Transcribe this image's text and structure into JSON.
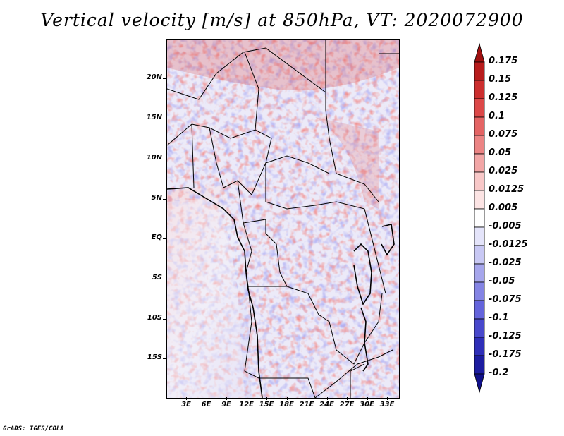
{
  "title": "Vertical velocity [m/s] at 850hPa, VT: 2020072900",
  "credit": "GrADS: IGES/COLA",
  "map": {
    "variable": "Vertical velocity",
    "units": "m/s",
    "level": "850hPa",
    "valid_time": "2020072900",
    "lat_labels": [
      "20N",
      "15N",
      "10N",
      "5N",
      "EQ",
      "5S",
      "10S",
      "15S"
    ],
    "lon_labels": [
      "3E",
      "6E",
      "9E",
      "12E",
      "15E",
      "18E",
      "21E",
      "24E",
      "27E",
      "30E",
      "33E"
    ]
  },
  "colorbar": {
    "labels": [
      "0.175",
      "0.15",
      "0.125",
      "0.1",
      "0.075",
      "0.05",
      "0.025",
      "0.0125",
      "0.005",
      "-0.005",
      "-0.0125",
      "-0.025",
      "-0.05",
      "-0.075",
      "-0.1",
      "-0.125",
      "-0.175",
      "-0.2"
    ],
    "colors": [
      "#a01010",
      "#b81c1c",
      "#cc2e2e",
      "#dc4848",
      "#e46464",
      "#ec8484",
      "#f2a6a6",
      "#f8c8c8",
      "#fce4e4",
      "#ffffff",
      "#e4e4fa",
      "#c8c8f4",
      "#a6a6ec",
      "#8484e4",
      "#6464dc",
      "#4848cc",
      "#2e2eb8",
      "#1c1ca0",
      "#10108a"
    ]
  }
}
